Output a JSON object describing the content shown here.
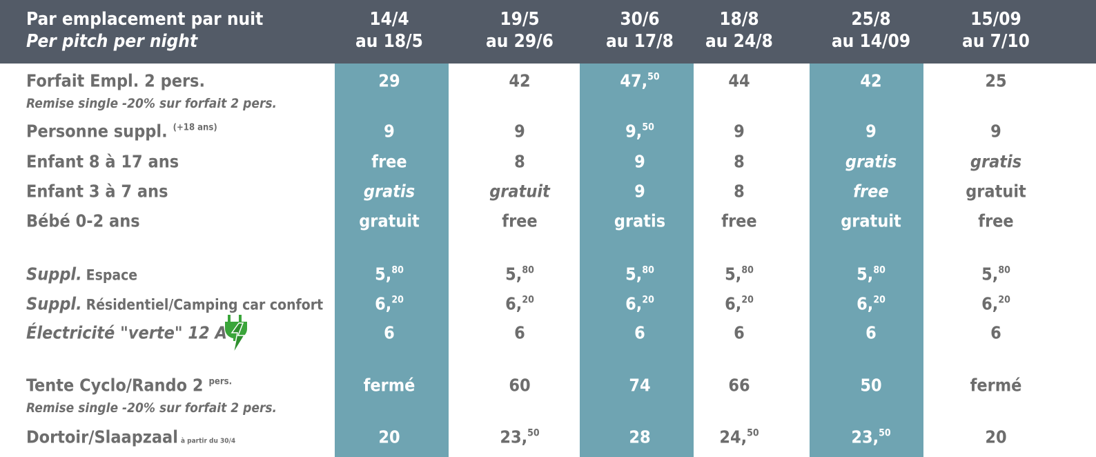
{
  "header": {
    "title": "Par emplacement par nuit",
    "subtitle": "Per pitch per night",
    "columns": [
      [
        "14/4",
        "au 18/5"
      ],
      [
        "19/5",
        "au 29/6"
      ],
      [
        "30/6",
        "au 17/8"
      ],
      [
        "18/8",
        "au 24/8"
      ],
      [
        "25/8",
        "au 14/09"
      ],
      [
        "15/09",
        "au 7/10"
      ]
    ]
  },
  "rows": [
    {
      "label": [
        {
          "text": "Forfait Empl. 2 pers.",
          "style": "main"
        }
      ],
      "note": "Remise single -20% sur forfait 2 pers.",
      "cells": [
        {
          "text": "29"
        },
        {
          "text": "42"
        },
        {
          "text": "47,",
          "sup": "50"
        },
        {
          "text": "44"
        },
        {
          "text": "42"
        },
        {
          "text": "25"
        }
      ]
    },
    {
      "label": [
        {
          "text": "Personne suppl.",
          "style": "main"
        },
        {
          "text": "(+18 ans)",
          "style": "sup"
        }
      ],
      "cells": [
        {
          "text": "9"
        },
        {
          "text": "9"
        },
        {
          "text": "9,",
          "sup": "50"
        },
        {
          "text": "9"
        },
        {
          "text": "9"
        },
        {
          "text": "9"
        }
      ]
    },
    {
      "label": [
        {
          "text": "Enfant 8 à 17 ans",
          "style": "main"
        }
      ],
      "cells": [
        {
          "text": "free"
        },
        {
          "text": "8"
        },
        {
          "text": "9"
        },
        {
          "text": "8"
        },
        {
          "text": "gratis",
          "italic": true
        },
        {
          "text": "gratis",
          "italic": true
        }
      ]
    },
    {
      "label": [
        {
          "text": "Enfant 3 à 7 ans",
          "style": "main"
        }
      ],
      "cells": [
        {
          "text": "gratis",
          "italic": true
        },
        {
          "text": "gratuit",
          "italic": true
        },
        {
          "text": "9"
        },
        {
          "text": "8"
        },
        {
          "text": "free",
          "italic": true
        },
        {
          "text": "gratuit"
        }
      ]
    },
    {
      "label": [
        {
          "text": "Bébé 0-2 ans",
          "style": "main"
        }
      ],
      "cells": [
        {
          "text": "gratuit"
        },
        {
          "text": "free"
        },
        {
          "text": "gratis"
        },
        {
          "text": "free"
        },
        {
          "text": "gratuit"
        },
        {
          "text": "free"
        }
      ]
    },
    {
      "label": [
        {
          "text": "Suppl.",
          "style": "italic"
        },
        {
          "text": "Espace",
          "style": "small"
        }
      ],
      "cells": [
        {
          "text": "5,",
          "sup": "80"
        },
        {
          "text": "5,",
          "sup": "80"
        },
        {
          "text": "5,",
          "sup": "80"
        },
        {
          "text": "5,",
          "sup": "80"
        },
        {
          "text": "5,",
          "sup": "80"
        },
        {
          "text": "5,",
          "sup": "80"
        }
      ]
    },
    {
      "label": [
        {
          "text": "Suppl.",
          "style": "italic"
        },
        {
          "text": "Résidentiel/Camping car confort",
          "style": "small"
        }
      ],
      "cells": [
        {
          "text": "6,",
          "sup": "20"
        },
        {
          "text": "6,",
          "sup": "20"
        },
        {
          "text": "6,",
          "sup": "20"
        },
        {
          "text": "6,",
          "sup": "20"
        },
        {
          "text": "6,",
          "sup": "20"
        },
        {
          "text": "6,",
          "sup": "20"
        }
      ]
    },
    {
      "label": [
        {
          "text": "Électricité  \"verte\" 12 A",
          "style": "italic"
        }
      ],
      "cells": [
        {
          "text": "6"
        },
        {
          "text": "6"
        },
        {
          "text": "6"
        },
        {
          "text": "6"
        },
        {
          "text": "6"
        },
        {
          "text": "6"
        }
      ]
    },
    {
      "label": [
        {
          "text": "Tente Cyclo/Rando 2",
          "style": "main"
        },
        {
          "text": "pers.",
          "style": "sup"
        }
      ],
      "note": "Remise single -20% sur forfait 2 pers.",
      "cells": [
        {
          "text": "fermé"
        },
        {
          "text": "60"
        },
        {
          "text": "74"
        },
        {
          "text": "66"
        },
        {
          "text": "50"
        },
        {
          "text": "fermé"
        }
      ]
    },
    {
      "label": [
        {
          "text": "Dortoir/Slaapzaal",
          "style": "main"
        },
        {
          "text": "à partir du 30/4",
          "style": "tiny"
        }
      ],
      "cells": [
        {
          "text": "20"
        },
        {
          "text": "23,",
          "sup": "50"
        },
        {
          "text": "28"
        },
        {
          "text": "24,",
          "sup": "50"
        },
        {
          "text": "23,",
          "sup": "50"
        },
        {
          "text": "20"
        }
      ]
    }
  ]
}
